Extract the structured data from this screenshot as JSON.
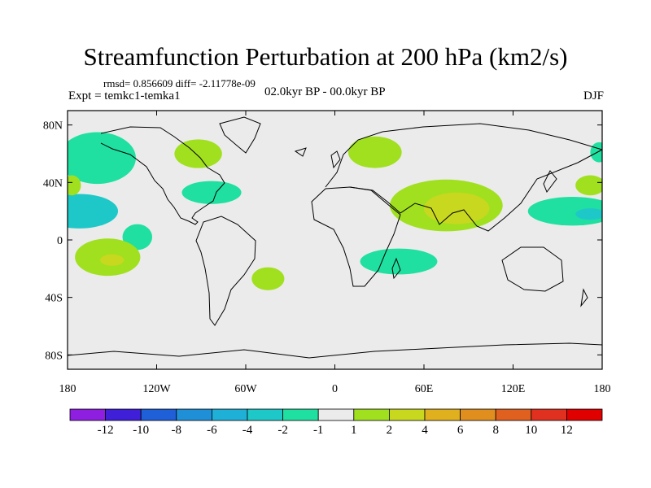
{
  "chart_data": {
    "type": "heatmap",
    "title": "Streamfunction Perturbation at 200 hPa (km2/s)",
    "stats_text": "rmsd= 0.856609 diff= -2.11778e-09",
    "experiment": "Expt = temkc1-temka1",
    "period": "02.0kyr BP - 00.0kyr BP",
    "season": "DJF",
    "x_range": [
      -180,
      180
    ],
    "y_range": [
      -90,
      90
    ],
    "x_ticks": [
      {
        "value": -180,
        "label": "180"
      },
      {
        "value": -120,
        "label": "120W"
      },
      {
        "value": -60,
        "label": "60W"
      },
      {
        "value": 0,
        "label": "0"
      },
      {
        "value": 60,
        "label": "60E"
      },
      {
        "value": 120,
        "label": "120E"
      },
      {
        "value": 180,
        "label": "180"
      }
    ],
    "y_ticks": [
      {
        "value": 80,
        "label": "80N"
      },
      {
        "value": 40,
        "label": "40N"
      },
      {
        "value": 0,
        "label": "0"
      },
      {
        "value": -40,
        "label": "40S"
      },
      {
        "value": -80,
        "label": "80S"
      }
    ],
    "contour_levels": [
      "-12",
      "-10",
      "-8",
      "-6",
      "-4",
      "-2",
      "-1",
      "1",
      "2",
      "4",
      "6",
      "8",
      "10",
      "12"
    ],
    "colorbar_colors": [
      "#8f1fe0",
      "#3f1fd8",
      "#1f5fd8",
      "#1f8fd8",
      "#1fb0d8",
      "#1fc8c8",
      "#1fe0a0",
      "#ebebeb",
      "#a0e01f",
      "#c8d81f",
      "#e0b01f",
      "#e08f1f",
      "#e0601f",
      "#e0301f",
      "#e00000"
    ],
    "anomalies": [
      {
        "name": "north-pacific-high-lat",
        "lon": -160,
        "lat": 57,
        "rlon": 26,
        "rlat": 18,
        "value": -1.5
      },
      {
        "name": "central-pacific",
        "lon": -172,
        "lat": 20,
        "rlon": 26,
        "rlat": 12,
        "value": -2.5
      },
      {
        "name": "central-pacific-core",
        "lon": -165,
        "lat": 20,
        "rlon": 9,
        "rlat": 5,
        "value": -3.5
      },
      {
        "name": "dateline-40n",
        "lon": -177,
        "lat": 38,
        "rlon": 6,
        "rlat": 7,
        "value": 1.5
      },
      {
        "name": "hudson-bay",
        "lon": -92,
        "lat": 60,
        "rlon": 16,
        "rlat": 10,
        "value": 1.5
      },
      {
        "name": "north-atlantic-storm",
        "lon": -83,
        "lat": 33,
        "rlon": 20,
        "rlat": 8,
        "value": -1.5
      },
      {
        "name": "east-pacific-tropics",
        "lon": -133,
        "lat": 2,
        "rlon": 10,
        "rlat": 9,
        "value": -1.5
      },
      {
        "name": "south-pacific",
        "lon": -153,
        "lat": -12,
        "rlon": 22,
        "rlat": 13,
        "value": 1.5
      },
      {
        "name": "south-pacific-core",
        "lon": -150,
        "lat": -14,
        "rlon": 8,
        "rlat": 4,
        "value": 3
      },
      {
        "name": "south-atlantic",
        "lon": -45,
        "lat": -27,
        "rlon": 11,
        "rlat": 8,
        "value": 1.5
      },
      {
        "name": "scandinavia",
        "lon": 27,
        "lat": 61,
        "rlon": 18,
        "rlat": 11,
        "value": 1.5
      },
      {
        "name": "north-africa-asia",
        "lon": 75,
        "lat": 24,
        "rlon": 38,
        "rlat": 18,
        "value": 1.5
      },
      {
        "name": "tibet-core",
        "lon": 82,
        "lat": 22,
        "rlon": 22,
        "rlat": 11,
        "value": 3
      },
      {
        "name": "indian-ocean-south",
        "lon": 43,
        "lat": -15,
        "rlon": 26,
        "rlat": 9,
        "value": -1.5
      },
      {
        "name": "west-pacific-jet",
        "lon": 160,
        "lat": 20,
        "rlon": 30,
        "rlat": 10,
        "value": -1.5
      },
      {
        "name": "west-pacific-core",
        "lon": 172,
        "lat": 18,
        "rlon": 10,
        "rlat": 4,
        "value": -3
      },
      {
        "name": "north-pacific-40n",
        "lon": 172,
        "lat": 38,
        "rlon": 10,
        "rlat": 7,
        "value": 1.5
      },
      {
        "name": "north-pacific-edge",
        "lon": 178,
        "lat": 61,
        "rlon": 6,
        "rlat": 7,
        "value": -1.5
      }
    ]
  }
}
